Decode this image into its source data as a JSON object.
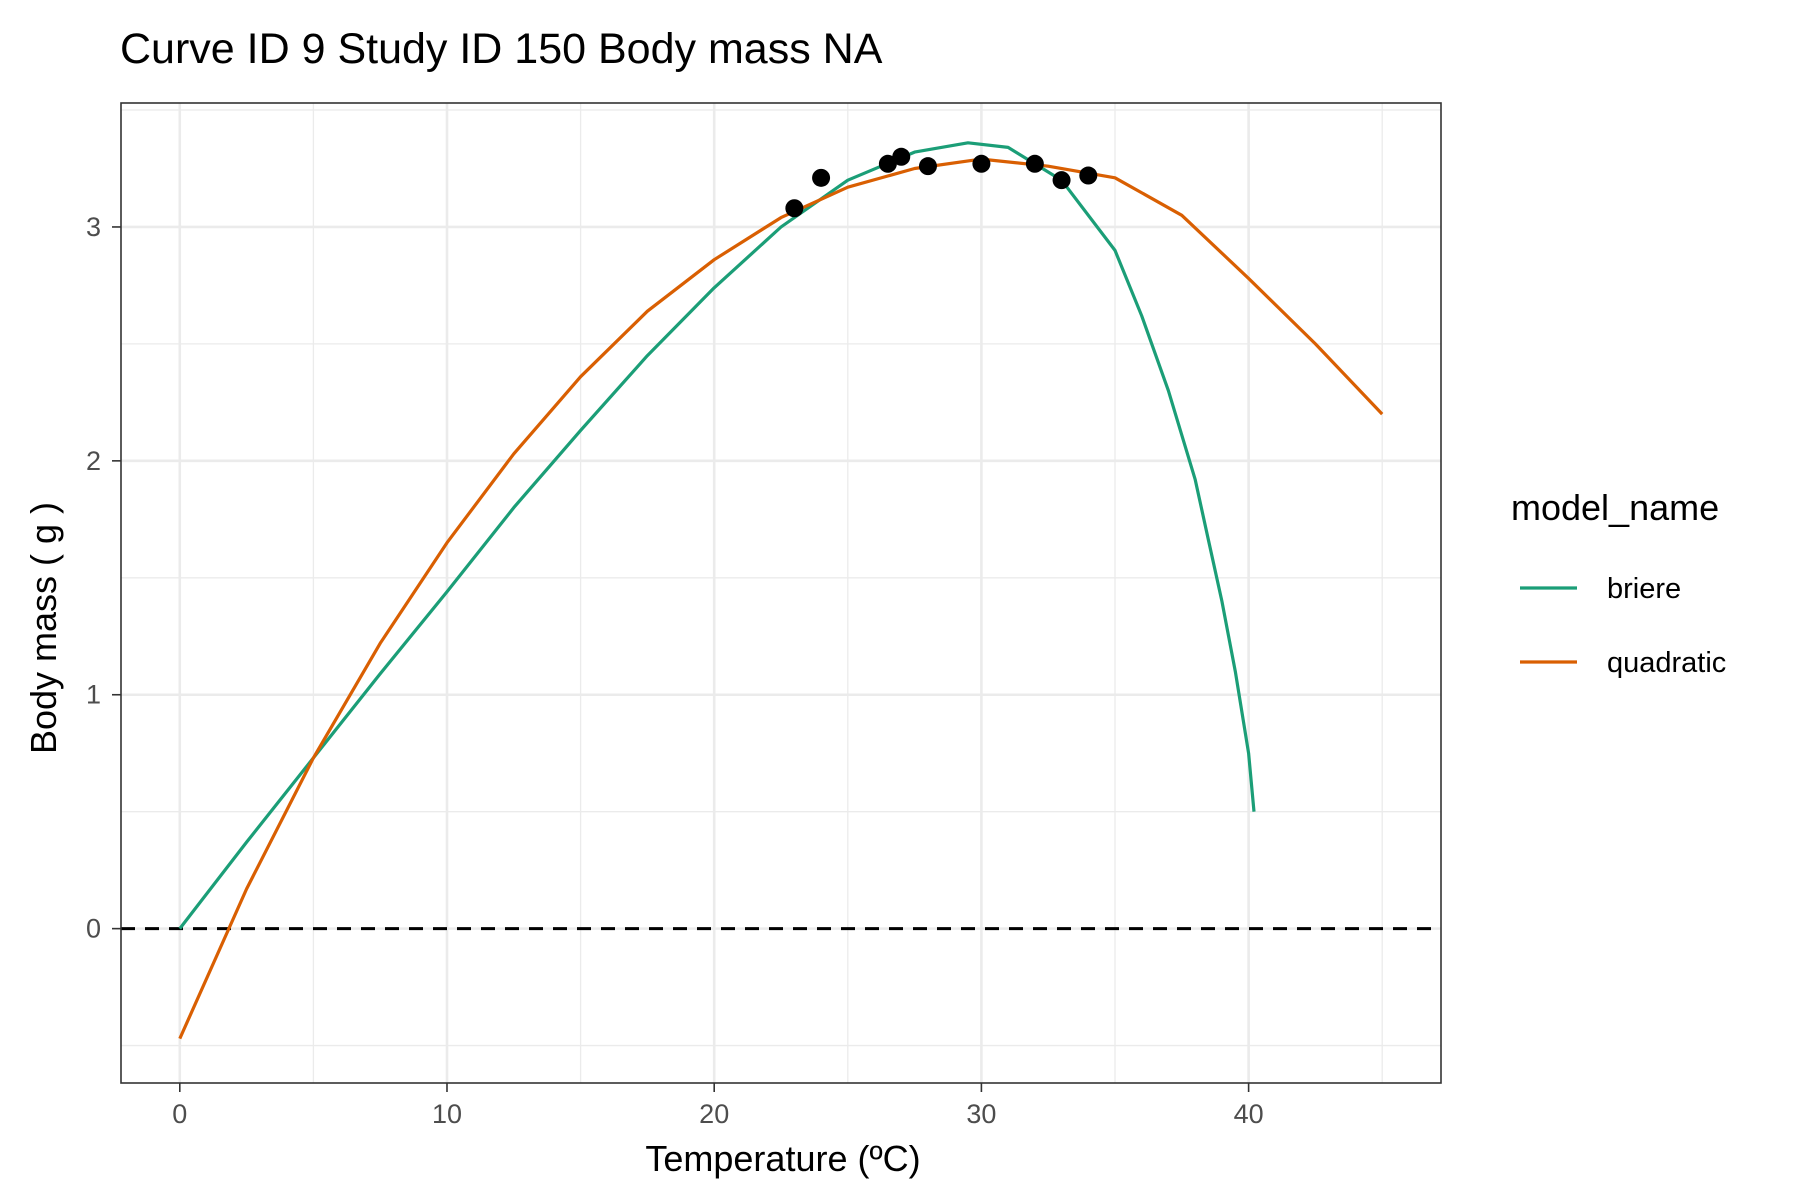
{
  "chart_data": {
    "type": "line",
    "title": "Curve ID 9 Study ID 150 Body mass NA",
    "xlabel": "Temperature (ºC)",
    "ylabel": "Body mass ( g )",
    "xlim": [
      -2.2,
      47.2
    ],
    "ylim": [
      -0.66,
      3.53
    ],
    "x_ticks": [
      0,
      10,
      20,
      30,
      40
    ],
    "y_ticks": [
      0,
      1,
      2,
      3
    ],
    "x_tick_labels": [
      "0",
      "10",
      "20",
      "30",
      "40"
    ],
    "y_tick_labels": [
      "0",
      "1",
      "2",
      "3"
    ],
    "grid": true,
    "reference_line": {
      "y": 0,
      "style": "dashed",
      "color": "#000000"
    },
    "points": {
      "x": [
        23,
        24,
        26.5,
        27,
        28,
        30,
        32,
        33,
        34
      ],
      "y": [
        3.08,
        3.21,
        3.27,
        3.3,
        3.26,
        3.27,
        3.27,
        3.2,
        3.22
      ]
    },
    "legend": {
      "title": "model_name",
      "placement": "right"
    },
    "series": [
      {
        "name": "briere",
        "color": "#1b9e77",
        "x": [
          0,
          2.5,
          5,
          7.5,
          10,
          12.5,
          15,
          17.5,
          20,
          22.5,
          25,
          27.5,
          29.5,
          31,
          33,
          35,
          36,
          37,
          38,
          38.5,
          39,
          39.5,
          40,
          40.2
        ],
        "y": [
          0,
          0.37,
          0.73,
          1.09,
          1.44,
          1.8,
          2.13,
          2.45,
          2.74,
          3.0,
          3.2,
          3.32,
          3.36,
          3.34,
          3.2,
          2.9,
          2.62,
          2.3,
          1.92,
          1.66,
          1.4,
          1.1,
          0.75,
          0.5
        ]
      },
      {
        "name": "quadratic",
        "color": "#d95f02",
        "x": [
          0,
          2.5,
          5,
          7.5,
          10,
          12.5,
          15,
          17.5,
          20,
          22.5,
          25,
          27.5,
          30,
          32.5,
          35,
          37.5,
          40,
          42.5,
          45
        ],
        "y": [
          -0.47,
          0.17,
          0.73,
          1.22,
          1.65,
          2.03,
          2.36,
          2.64,
          2.86,
          3.04,
          3.17,
          3.25,
          3.29,
          3.26,
          3.21,
          3.05,
          2.78,
          2.5,
          2.2
        ]
      }
    ]
  }
}
